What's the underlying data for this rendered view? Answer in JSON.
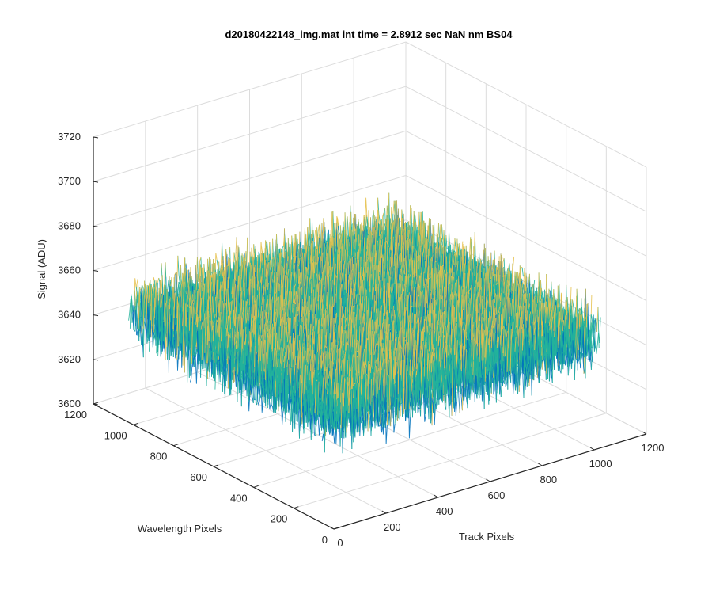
{
  "chart_data": {
    "type": "surface",
    "title": "d20180422148_img.mat int time = 2.8912 sec  NaN nm BS04",
    "xlabel": "Track Pixels",
    "ylabel": "Wavelength Pixels",
    "zlabel": "Signal (ADU)",
    "xlim": [
      0,
      1200
    ],
    "ylim": [
      0,
      1200
    ],
    "zlim": [
      3600,
      3720
    ],
    "x_ticks": [
      0,
      200,
      400,
      600,
      800,
      1000,
      1200
    ],
    "y_ticks": [
      0,
      200,
      400,
      600,
      800,
      1000,
      1200
    ],
    "z_ticks": [
      3600,
      3620,
      3640,
      3660,
      3680,
      3700,
      3720
    ],
    "x_tick_labels": [
      "0",
      "200",
      "400",
      "600",
      "800",
      "1000",
      "1200"
    ],
    "y_tick_labels": [
      "0",
      "200",
      "400",
      "600",
      "800",
      "1000",
      "1200"
    ],
    "z_tick_labels": [
      "3600",
      "3620",
      "3640",
      "3660",
      "3680",
      "3700",
      "3720"
    ],
    "data_extent": {
      "x": [
        0,
        1024
      ],
      "y": [
        0,
        1024
      ]
    },
    "signal_mean": 3650,
    "signal_range": [
      3620,
      3690
    ],
    "grid": true,
    "colormap": "parula",
    "colors": {
      "low": "#0072bd",
      "mid": "#22b39b",
      "high": "#e5c14c",
      "grid": "#dcdcdc",
      "axis": "#262626"
    }
  }
}
